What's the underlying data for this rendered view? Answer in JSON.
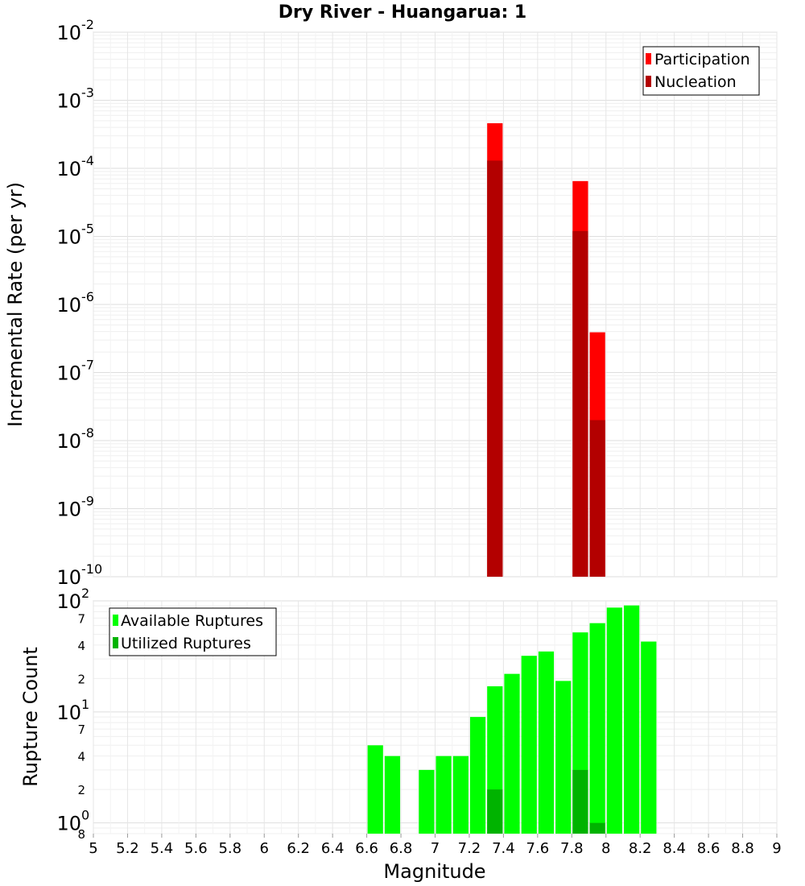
{
  "chart_data": {
    "type": "bar",
    "title": "Dry River - Huangarua: 1",
    "xlabel": "Magnitude",
    "xlim": [
      5,
      9
    ],
    "xticks": [
      "5",
      "5.2",
      "5.4",
      "5.6",
      "5.8",
      "6",
      "6.2",
      "6.4",
      "6.6",
      "6.8",
      "7",
      "7.2",
      "7.4",
      "7.6",
      "7.8",
      "8",
      "8.2",
      "8.4",
      "8.6",
      "8.8",
      "9"
    ],
    "bin_width": 0.1,
    "panels": [
      {
        "id": "rate",
        "ylabel": "Incremental Rate (per yr)",
        "yscale": "log",
        "ylim": [
          1e-10,
          0.01
        ],
        "major_ticks": [
          {
            "base": "10",
            "exp": "-10",
            "value": 1e-10
          },
          {
            "base": "10",
            "exp": "-9",
            "value": 1e-09
          },
          {
            "base": "10",
            "exp": "-8",
            "value": 1e-08
          },
          {
            "base": "10",
            "exp": "-7",
            "value": 1e-07
          },
          {
            "base": "10",
            "exp": "-6",
            "value": 1e-06
          },
          {
            "base": "10",
            "exp": "-5",
            "value": 1e-05
          },
          {
            "base": "10",
            "exp": "-4",
            "value": 0.0001
          },
          {
            "base": "10",
            "exp": "-3",
            "value": 0.001
          },
          {
            "base": "10",
            "exp": "-2",
            "value": 0.01
          }
        ],
        "legend": {
          "position": "top-right",
          "entries": [
            "Participation",
            "Nucleation"
          ]
        },
        "series": [
          {
            "name": "Participation",
            "color": "#ff0000",
            "x": [
              7.35,
              7.85,
              7.95
            ],
            "values": [
              0.00046,
              6.5e-05,
              3.9e-07
            ]
          },
          {
            "name": "Nucleation",
            "color": "#b30000",
            "x": [
              7.35,
              7.85,
              7.95
            ],
            "values": [
              0.00013,
              1.2e-05,
              2e-08
            ]
          }
        ]
      },
      {
        "id": "count",
        "ylabel": "Rupture Count",
        "yscale": "log",
        "ylim": [
          0.8,
          100
        ],
        "major_ticks": [
          {
            "base": "10",
            "exp": "0",
            "value": 1
          },
          {
            "base": "10",
            "exp": "1",
            "value": 10
          },
          {
            "base": "10",
            "exp": "2",
            "value": 100
          }
        ],
        "minor_tick_labels": [
          {
            "label": "8",
            "value": 0.8
          },
          {
            "label": "2",
            "value": 2
          },
          {
            "label": "4",
            "value": 4
          },
          {
            "label": "7",
            "value": 7
          },
          {
            "label": "2",
            "value": 20
          },
          {
            "label": "4",
            "value": 40
          },
          {
            "label": "7",
            "value": 70
          }
        ],
        "legend": {
          "position": "top-left",
          "entries": [
            "Available Ruptures",
            "Utilized Ruptures"
          ]
        },
        "series": [
          {
            "name": "Available Ruptures",
            "color": "#00ff00",
            "x": [
              6.65,
              6.75,
              6.95,
              7.05,
              7.15,
              7.25,
              7.35,
              7.45,
              7.55,
              7.65,
              7.75,
              7.85,
              7.95,
              8.05,
              8.15,
              8.25
            ],
            "values": [
              5,
              4,
              3,
              4,
              4,
              9,
              17,
              22,
              32,
              35,
              19,
              52,
              63,
              87,
              91,
              43
            ]
          },
          {
            "name": "Utilized Ruptures",
            "color": "#00b300",
            "x": [
              7.35,
              7.85,
              7.95
            ],
            "values": [
              2,
              3,
              1
            ]
          }
        ]
      }
    ]
  }
}
